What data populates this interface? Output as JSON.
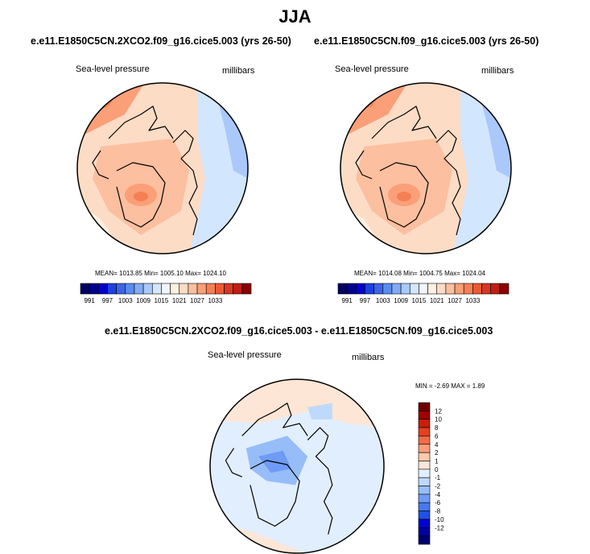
{
  "figure_title": "JJA",
  "colors": {
    "cb_left": [
      "#000064",
      "#00008b",
      "#0000cd",
      "#1e40dc",
      "#3c64e6",
      "#5a8cf0",
      "#82aaf5",
      "#aac8fa",
      "#d2e6fd",
      "#f0f5ff",
      "#fff0e1",
      "#fddcc6",
      "#fcbfa0",
      "#fa9f78",
      "#f57f55",
      "#eb5a37",
      "#d73723",
      "#be1e14",
      "#8b0000"
    ],
    "cb_diff": [
      "#00006e",
      "#0000a0",
      "#0000d2",
      "#1e50e6",
      "#4678f0",
      "#6e9bf5",
      "#96bdf8",
      "#bed9fb",
      "#e1eefe",
      "#fde6d6",
      "#fcc9ad",
      "#fa9d7a",
      "#f26b46",
      "#e64020",
      "#c81e0a",
      "#a00000",
      "#6e0000"
    ]
  },
  "chart_data": [
    {
      "type": "heatmap",
      "title": "e.e11.E1850C5CN.2XCO2.f09_g16.cice5.003 (yrs 26-50)",
      "variable": "Sea-level pressure",
      "units": "millibars",
      "stats": "MEAN= 1013.85   Min= 1005.10   Max= 1024.10",
      "colorbar_labels": [
        "991",
        "997",
        "1003",
        "1009",
        "1015",
        "1021",
        "1027",
        "1033"
      ]
    },
    {
      "type": "heatmap",
      "title": "e.e11.E1850C5CN.f09_g16.cice5.003 (yrs 26-50)",
      "variable": "Sea-level pressure",
      "units": "millibars",
      "stats": "MEAN= 1014.08   Min= 1004.75   Max= 1024.04",
      "colorbar_labels": [
        "991",
        "997",
        "1003",
        "1009",
        "1015",
        "1021",
        "1027",
        "1033"
      ]
    },
    {
      "type": "heatmap",
      "title": "e.e11.E1850C5CN.2XCO2.f09_g16.cice5.003 - e.e11.E1850C5CN.f09_g16.cice5.003",
      "variable": "Sea-level pressure",
      "units": "millibars",
      "stats": "MIN =  -2.69 MAX =   1.89",
      "colorbar_labels": [
        "12",
        "10",
        "8",
        "6",
        "4",
        "2",
        "1",
        "0",
        "-1",
        "-2",
        "-4",
        "-6",
        "-8",
        "-10",
        "-12"
      ]
    }
  ]
}
